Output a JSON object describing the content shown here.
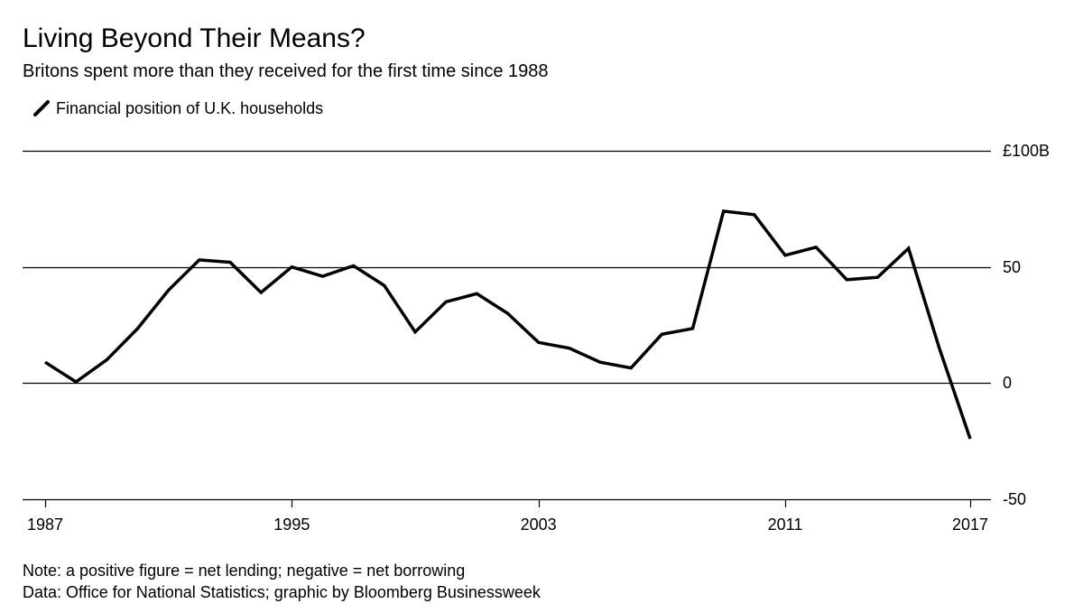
{
  "header": {
    "title": "Living Beyond Their Means?",
    "subtitle": "Britons spent more than they received for the first time since 1988"
  },
  "legend": {
    "label": "Financial position of U.K. households"
  },
  "footer": {
    "note": "Note: a positive figure = net lending; negative = net borrowing",
    "source": "Data: Office for National Statistics; graphic by Bloomberg Businessweek"
  },
  "chart_data": {
    "type": "line",
    "title": "Living Beyond Their Means?",
    "subtitle": "Britons spent more than they received for the first time since 1988",
    "xlabel": "",
    "ylabel": "",
    "x": [
      1987,
      1988,
      1989,
      1990,
      1991,
      1992,
      1993,
      1994,
      1995,
      1996,
      1997,
      1998,
      1999,
      2000,
      2001,
      2002,
      2003,
      2004,
      2005,
      2006,
      2007,
      2008,
      2009,
      2010,
      2011,
      2012,
      2013,
      2014,
      2015,
      2016,
      2017
    ],
    "series": [
      {
        "name": "Financial position of U.K. households",
        "values": [
          9,
          0.5,
          10,
          23.5,
          40,
          53,
          52,
          39,
          50,
          46,
          50.5,
          42,
          22,
          35,
          38.5,
          30,
          17.5,
          15,
          9,
          6.5,
          21,
          23.5,
          74,
          72.5,
          55,
          58.5,
          44.5,
          45.5,
          58,
          15,
          -24
        ]
      }
    ],
    "ylim": [
      -50,
      100
    ],
    "xlim": [
      1987,
      2017
    ],
    "y_ticks": [
      {
        "value": 100,
        "label": "£100B"
      },
      {
        "value": 50,
        "label": "50"
      },
      {
        "value": 0,
        "label": "0"
      },
      {
        "value": -50,
        "label": "-50"
      }
    ],
    "x_ticks": [
      {
        "value": 1987,
        "label": "1987"
      },
      {
        "value": 1995,
        "label": "1995"
      },
      {
        "value": 2003,
        "label": "2003"
      },
      {
        "value": 2011,
        "label": "2011"
      },
      {
        "value": 2017,
        "label": "2017"
      }
    ],
    "grid": true,
    "legend_position": "top-left",
    "colors": {
      "line": "#000000",
      "grid": "#000000",
      "text": "#000000"
    }
  }
}
